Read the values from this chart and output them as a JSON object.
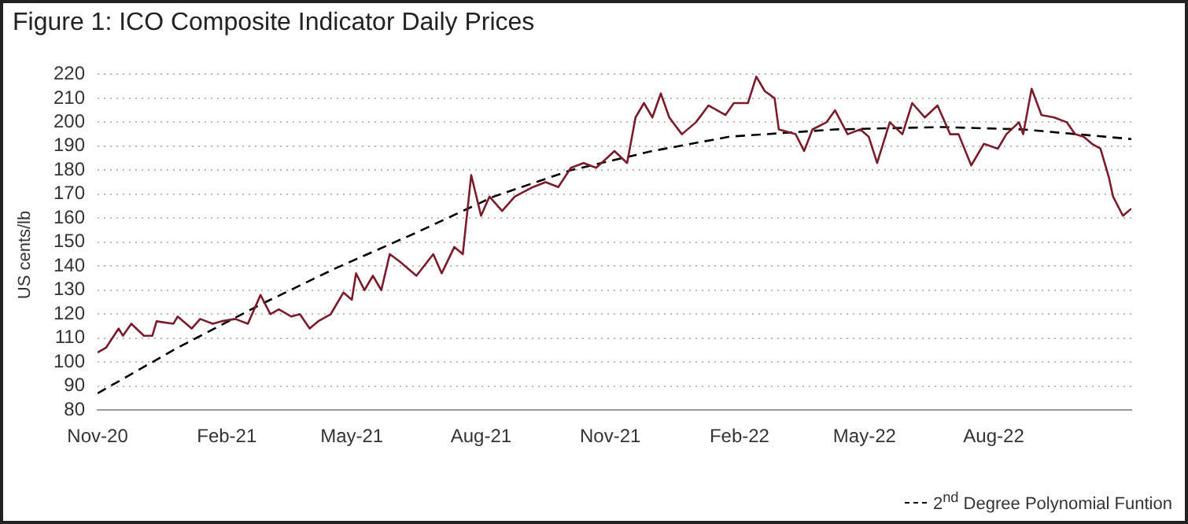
{
  "chart_data": {
    "type": "line",
    "title": "Figure 1: ICO Composite Indicator Daily Prices",
    "ylabel": "US cents/lb",
    "xlim": [
      "2020-11-01",
      "2022-11-07"
    ],
    "xticks": [
      {
        "value": "2020-11",
        "label": "Nov-20"
      },
      {
        "value": "2021-02",
        "label": "Feb-21"
      },
      {
        "value": "2021-05",
        "label": "May-21"
      },
      {
        "value": "2021-08",
        "label": "Aug-21"
      },
      {
        "value": "2021-11",
        "label": "Nov-21"
      },
      {
        "value": "2022-02",
        "label": "Feb-22"
      },
      {
        "value": "2022-05",
        "label": "May-22"
      },
      {
        "value": "2022-08",
        "label": "Aug-22"
      }
    ],
    "ylim": [
      80,
      220
    ],
    "yticks": [
      80,
      90,
      100,
      110,
      120,
      130,
      140,
      150,
      160,
      170,
      180,
      190,
      200,
      210,
      220
    ],
    "grid": "y",
    "legend": "bottom right",
    "marker": "none",
    "series": [
      {
        "color": "#7b1c2c",
        "line_style": "solid",
        "x": [
          "2020-11-01",
          "2020-11-07",
          "2020-11-16",
          "2020-11-19",
          "2020-11-25",
          "2020-12-04",
          "2020-12-10",
          "2020-12-13",
          "2020-12-25",
          "2020-12-28",
          "2021-01-07",
          "2021-01-13",
          "2021-01-22",
          "2021-01-28",
          "2021-02-07",
          "2021-02-16",
          "2021-02-25",
          "2021-03-04",
          "2021-03-10",
          "2021-03-19",
          "2021-03-25",
          "2021-04-01",
          "2021-04-07",
          "2021-04-16",
          "2021-04-25",
          "2021-05-01",
          "2021-05-04",
          "2021-05-10",
          "2021-05-16",
          "2021-05-22",
          "2021-05-28",
          "2021-06-04",
          "2021-06-16",
          "2021-06-28",
          "2021-07-04",
          "2021-07-13",
          "2021-07-19",
          "2021-07-25",
          "2021-08-01",
          "2021-08-04",
          "2021-08-07",
          "2021-08-16",
          "2021-08-25",
          "2021-09-07",
          "2021-09-16",
          "2021-09-25",
          "2021-10-04",
          "2021-10-13",
          "2021-10-22",
          "2021-11-04",
          "2021-11-13",
          "2021-11-19",
          "2021-11-25",
          "2021-12-01",
          "2021-12-07",
          "2021-12-13",
          "2021-12-22",
          "2022-01-01",
          "2022-01-10",
          "2022-01-22",
          "2022-01-28",
          "2022-02-07",
          "2022-02-13",
          "2022-02-19",
          "2022-02-26",
          "2022-03-01",
          "2022-03-13",
          "2022-03-19",
          "2022-03-25",
          "2022-04-04",
          "2022-04-10",
          "2022-04-19",
          "2022-04-28",
          "2022-05-04",
          "2022-05-10",
          "2022-05-19",
          "2022-05-28",
          "2022-06-04",
          "2022-06-13",
          "2022-06-22",
          "2022-07-01",
          "2022-07-07",
          "2022-07-16",
          "2022-07-25",
          "2022-08-04",
          "2022-08-10",
          "2022-08-19",
          "2022-08-22",
          "2022-08-28",
          "2022-09-04",
          "2022-09-13",
          "2022-09-22",
          "2022-09-28",
          "2022-10-04",
          "2022-10-10",
          "2022-10-16",
          "2022-10-22",
          "2022-10-25",
          "2022-11-01",
          "2022-11-07"
        ],
        "values": [
          104,
          106,
          114,
          111,
          116,
          111,
          111,
          117,
          116,
          119,
          114,
          118,
          116,
          117,
          118,
          116,
          128,
          120,
          122,
          119,
          120,
          114,
          117,
          120,
          129,
          126,
          137,
          130,
          136,
          130,
          145,
          142,
          136,
          145,
          137,
          148,
          145,
          178,
          161,
          165,
          169,
          163,
          169,
          173,
          175,
          173,
          181,
          183,
          181,
          188,
          183,
          202,
          208,
          202,
          212,
          202,
          195,
          200,
          207,
          203,
          208,
          208,
          219,
          213,
          210,
          197,
          195,
          188,
          197,
          200,
          205,
          195,
          197,
          194,
          183,
          200,
          195,
          208,
          202,
          207,
          195,
          195,
          182,
          191,
          189,
          195,
          200,
          195,
          214,
          203,
          202,
          200,
          195,
          194,
          191,
          189,
          177,
          169,
          161,
          164
        ]
      },
      {
        "name": "2$^{nd}$ Degree Polynomial Funtion",
        "color": "#000000",
        "line_style": "dashed",
        "x": [
          "2020-11-01",
          "2020-12-28",
          "2021-02-25",
          "2021-04-19",
          "2021-06-16",
          "2021-08-10",
          "2021-10-04",
          "2021-12-01",
          "2022-01-25",
          "2022-04-10",
          "2022-06-25",
          "2022-08-22",
          "2022-11-07"
        ],
        "values": [
          87,
          106,
          124,
          139,
          154,
          169,
          180,
          188,
          194,
          197,
          198,
          197,
          193
        ]
      }
    ]
  }
}
